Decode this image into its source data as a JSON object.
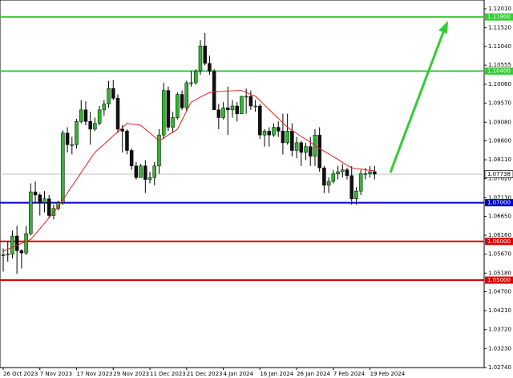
{
  "chart_data": {
    "type": "candlestick",
    "categories": [
      "26 Oct 2023",
      null,
      null,
      null,
      null,
      null,
      null,
      null,
      "7 Nov 2023",
      null,
      null,
      null,
      null,
      null,
      null,
      null,
      "17 Nov 2023",
      null,
      null,
      null,
      null,
      null,
      null,
      null,
      "29 Nov 2023",
      null,
      null,
      null,
      null,
      null,
      null,
      null,
      "11 Dec 2023",
      null,
      null,
      null,
      null,
      null,
      null,
      null,
      "21 Dec 2023",
      null,
      null,
      null,
      null,
      null,
      null,
      null,
      "4 Jan 2024",
      null,
      null,
      null,
      null,
      null,
      null,
      null,
      "16 Jan 2024",
      null,
      null,
      null,
      null,
      null,
      null,
      null,
      "26 Jan 2024",
      null,
      null,
      null,
      null,
      null,
      null,
      null,
      "7 Feb 2024",
      null,
      null,
      null,
      null,
      null,
      null,
      null,
      "19 Feb 2024",
      null
    ],
    "open": [
      1.0563,
      1.0565,
      1.0567,
      1.0614,
      1.0576,
      1.057,
      1.062,
      1.0728,
      1.072,
      1.07,
      1.071,
      1.0667,
      1.0685,
      1.07,
      1.088,
      1.085,
      1.085,
      1.091,
      1.094,
      1.091,
      1.089,
      1.0905,
      1.094,
      1.0955,
      1.0995,
      1.097,
      1.089,
      1.0885,
      1.0835,
      1.0795,
      1.0765,
      1.0795,
      1.076,
      1.0765,
      1.0795,
      1.0875,
      1.099,
      1.0895,
      1.092,
      1.098,
      1.0945,
      1.101,
      1.101,
      1.104,
      1.1105,
      1.106,
      1.104,
      1.094,
      1.092,
      1.0945,
      1.094,
      1.095,
      1.093,
      1.0975,
      1.0975,
      1.095,
      1.095,
      1.0875,
      1.0885,
      1.0875,
      1.0895,
      1.0885,
      1.0855,
      1.0885,
      1.0835,
      1.0855,
      1.083,
      1.0845,
      1.082,
      1.0875,
      1.079,
      1.0745,
      1.0755,
      1.0775,
      1.078,
      1.0785,
      1.077,
      1.071,
      1.073,
      1.0775,
      1.0775,
      1.078
    ],
    "high": [
      1.0582,
      1.0601,
      1.0628,
      1.064,
      1.058,
      1.064,
      1.075,
      1.0755,
      1.0725,
      1.073,
      1.072,
      1.0695,
      1.0705,
      1.0887,
      1.0895,
      1.087,
      1.0917,
      1.0965,
      1.0962,
      1.0935,
      1.092,
      1.095,
      1.0965,
      1.1015,
      1.1017,
      1.098,
      1.09,
      1.089,
      1.084,
      1.0805,
      1.08,
      1.081,
      1.078,
      1.0805,
      1.089,
      1.101,
      1.1,
      1.0935,
      1.0985,
      1.099,
      1.1015,
      1.104,
      1.1045,
      1.112,
      1.1139,
      1.108,
      1.1045,
      1.0955,
      1.096,
      1.1,
      1.0965,
      1.096,
      1.0975,
      1.0995,
      1.099,
      1.0965,
      1.0955,
      1.089,
      1.0895,
      1.0905,
      1.091,
      1.093,
      1.093,
      1.0905,
      1.087,
      1.086,
      1.0855,
      1.087,
      1.089,
      1.0895,
      1.0795,
      1.0765,
      1.0785,
      1.0795,
      1.08,
      1.079,
      1.0795,
      1.074,
      1.0785,
      1.079,
      1.0795,
      1.0795
    ],
    "low": [
      1.0522,
      1.0548,
      1.0556,
      1.0516,
      1.053,
      1.0565,
      1.0615,
      1.07,
      1.0667,
      1.0675,
      1.066,
      1.0657,
      1.068,
      1.0695,
      1.083,
      1.0825,
      1.084,
      1.0905,
      1.09,
      1.085,
      1.0885,
      1.09,
      1.0925,
      1.0945,
      1.0965,
      1.088,
      1.083,
      1.0825,
      1.0785,
      1.076,
      1.0765,
      1.0725,
      1.075,
      1.0745,
      1.0775,
      1.0865,
      1.0885,
      1.088,
      1.0915,
      1.094,
      1.0935,
      1.1,
      1.1005,
      1.103,
      1.1055,
      1.103,
      1.094,
      1.089,
      1.0915,
      1.0875,
      1.092,
      1.091,
      1.093,
      1.093,
      1.094,
      1.0935,
      1.0865,
      1.0845,
      1.0845,
      1.087,
      1.087,
      1.0825,
      1.085,
      1.082,
      1.0815,
      1.0795,
      1.081,
      1.0795,
      1.0795,
      1.078,
      1.0725,
      1.0725,
      1.075,
      1.076,
      1.0765,
      1.076,
      1.0695,
      1.0695,
      1.072,
      1.076,
      1.0765,
      1.076
    ],
    "close": [
      1.0565,
      1.0567,
      1.0614,
      1.0576,
      1.057,
      1.062,
      1.0728,
      1.072,
      1.07,
      1.071,
      1.0667,
      1.0685,
      1.07,
      1.088,
      1.085,
      1.085,
      1.091,
      1.094,
      1.091,
      1.089,
      1.0905,
      1.094,
      1.0955,
      1.0995,
      1.097,
      1.089,
      1.0885,
      1.0835,
      1.0795,
      1.0765,
      1.0795,
      1.076,
      1.0765,
      1.0795,
      1.0875,
      1.099,
      1.0895,
      1.092,
      1.098,
      1.0945,
      1.101,
      1.101,
      1.104,
      1.1105,
      1.106,
      1.104,
      1.094,
      1.092,
      1.0945,
      1.094,
      1.095,
      1.093,
      1.0975,
      1.0975,
      1.095,
      1.095,
      1.0875,
      1.0885,
      1.0875,
      1.0895,
      1.0885,
      1.0855,
      1.0885,
      1.0835,
      1.0855,
      1.083,
      1.0845,
      1.082,
      1.0875,
      1.079,
      1.0745,
      1.0755,
      1.0775,
      1.078,
      1.0785,
      1.077,
      1.071,
      1.073,
      1.0775,
      1.0775,
      1.078,
      1.07738
    ],
    "up_color": "#2eb82e",
    "down_color": "#111111",
    "moving_average": {
      "color": "#e02020",
      "values": [
        1.0575,
        1.058,
        1.0585,
        1.059,
        1.0595,
        1.06,
        1.0605,
        1.0619,
        1.0633,
        1.0647,
        1.0661,
        1.0675,
        1.069,
        1.0708,
        1.0725,
        1.0743,
        1.076,
        1.0778,
        1.0795,
        1.0813,
        1.083,
        1.0841,
        1.0851,
        1.0862,
        1.0873,
        1.0883,
        1.0894,
        1.0905,
        1.0903,
        1.0902,
        1.09,
        1.089,
        1.088,
        1.087,
        1.086,
        1.0867,
        1.0875,
        1.0882,
        1.089,
        1.0913,
        1.0937,
        1.096,
        1.0966,
        1.0973,
        1.0979,
        1.0985,
        1.0986,
        1.0987,
        1.0988,
        1.0989,
        1.0989,
        1.099,
        1.099,
        1.0985,
        1.098,
        1.0975,
        1.0964,
        1.0952,
        1.0941,
        1.0929,
        1.0918,
        1.0906,
        1.0895,
        1.0887,
        1.0879,
        1.0871,
        1.0864,
        1.0856,
        1.0848,
        1.084,
        1.0833,
        1.0826,
        1.0819,
        1.0812,
        1.0804,
        1.0797,
        1.079,
        1.0788,
        1.0787,
        1.0785,
        1.0784,
        1.0782
      ]
    },
    "ylim": [
      1.0274,
      1.12238
    ],
    "yticks": [
      {
        "value": 1.1201,
        "label": "1.12010"
      },
      {
        "value": 1.1152,
        "label": "1.11520"
      },
      {
        "value": 1.1104,
        "label": "1.11040"
      },
      1.10555,
      {
        "value": 1.1006,
        "label": "1.10060"
      },
      {
        "value": 1.0957,
        "label": "1.09570"
      },
      {
        "value": 1.0908,
        "label": "1.09080"
      },
      {
        "value": 1.086,
        "label": "1.08600"
      },
      {
        "value": 1.0811,
        "label": "1.08110"
      },
      {
        "value": 1.0762,
        "label": "1.07620"
      },
      {
        "value": 1.0713,
        "label": "1.07130"
      },
      {
        "value": 1.0665,
        "label": "1.06650"
      },
      {
        "value": 1.0616,
        "label": "1.06160"
      },
      {
        "value": 1.0567,
        "label": "1.05670"
      },
      {
        "value": 1.0518,
        "label": "1.05180"
      },
      {
        "value": 1.047,
        "label": "1.04700"
      },
      {
        "value": 1.0421,
        "label": "1.04210"
      },
      {
        "value": 1.0372,
        "label": "1.03720"
      },
      {
        "value": 1.0323,
        "label": "1.03230"
      },
      {
        "value": 1.0274,
        "label": "1.02740"
      }
    ],
    "levels": [
      {
        "value": 1.118,
        "label": "1.11800",
        "color": "#33cc33"
      },
      {
        "value": 1.104,
        "label": "1.10400",
        "color": "#33cc33"
      },
      {
        "value": 1.07,
        "label": "1.07000",
        "color": "#0000cc"
      },
      {
        "value": 1.06,
        "label": "1.06000",
        "color": "#dd0000"
      },
      {
        "value": 1.05,
        "label": "1.05000",
        "color": "#dd0000"
      }
    ],
    "current_price": 1.07738
  }
}
